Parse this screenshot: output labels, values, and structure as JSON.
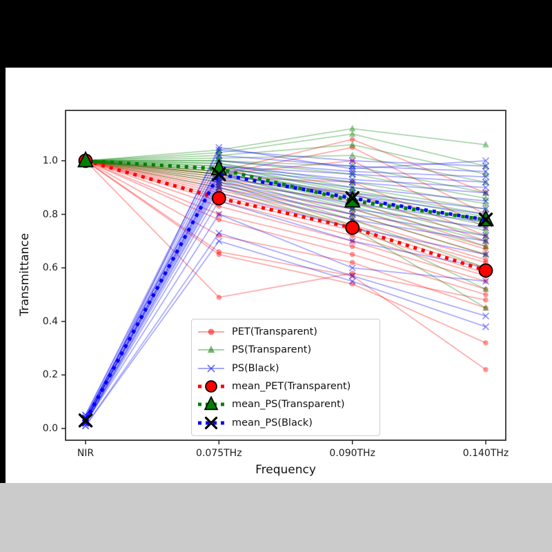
{
  "colors": {
    "pet_transparent": "#ff0000",
    "ps_transparent": "#008000",
    "ps_black": "#0000ff",
    "marker_edge": "#000000",
    "letterbox_top": "#000000",
    "letterbox_left": "#000000",
    "letterbox_bottom": "#cbcbcb",
    "plot_background": "#ffffff",
    "spine": "#262626"
  },
  "chart_data": {
    "type": "line",
    "title": "",
    "xlabel": "Frequency",
    "ylabel": "Transmittance",
    "x_categories": [
      "NIR",
      "0.075THz",
      "0.090THz",
      "0.140THz"
    ],
    "y_ticks": [
      "0.0",
      "0.2",
      "0.4",
      "0.6",
      "0.8",
      "1.0"
    ],
    "ylim": [
      -0.04,
      1.19
    ],
    "grid": false,
    "legend_position": "lower center inside axes",
    "groups": [
      {
        "name": "PET(Transparent)",
        "color": "#ff0000",
        "marker": "circle",
        "alpha": 0.3,
        "samples": [
          [
            1.0,
            0.49,
            0.58,
            0.48
          ],
          [
            1.0,
            0.65,
            0.54,
            0.32
          ],
          [
            1.0,
            0.66,
            0.57,
            0.22
          ],
          [
            1.0,
            0.72,
            0.62,
            0.45
          ],
          [
            1.0,
            0.78,
            0.65,
            0.5
          ],
          [
            1.0,
            0.8,
            0.68,
            0.52
          ],
          [
            1.0,
            0.83,
            0.7,
            0.55
          ],
          [
            1.0,
            0.85,
            0.72,
            0.57
          ],
          [
            1.0,
            0.86,
            0.74,
            0.58
          ],
          [
            1.0,
            0.87,
            0.75,
            0.6
          ],
          [
            1.0,
            0.88,
            0.76,
            0.62
          ],
          [
            1.0,
            0.89,
            0.78,
            0.63
          ],
          [
            1.0,
            0.9,
            0.8,
            0.65
          ],
          [
            1.0,
            0.91,
            0.82,
            0.67
          ],
          [
            1.0,
            0.92,
            0.85,
            0.68
          ],
          [
            1.0,
            0.93,
            0.88,
            0.7
          ],
          [
            1.0,
            0.94,
            0.92,
            0.72
          ],
          [
            1.0,
            0.95,
            1.0,
            0.75
          ],
          [
            1.0,
            0.95,
            1.05,
            0.8
          ],
          [
            1.0,
            0.96,
            1.08,
            0.88
          ]
        ]
      },
      {
        "name": "PS(Transparent)",
        "color": "#008000",
        "marker": "triangle",
        "alpha": 0.3,
        "samples": [
          [
            1.0,
            0.9,
            0.75,
            0.45
          ],
          [
            1.0,
            0.92,
            0.76,
            0.52
          ],
          [
            1.0,
            0.93,
            0.78,
            0.6
          ],
          [
            1.0,
            0.94,
            0.8,
            0.65
          ],
          [
            1.0,
            0.95,
            0.82,
            0.68
          ],
          [
            1.0,
            0.95,
            0.83,
            0.7
          ],
          [
            1.0,
            0.96,
            0.84,
            0.72
          ],
          [
            1.0,
            0.96,
            0.85,
            0.74
          ],
          [
            1.0,
            0.97,
            0.86,
            0.76
          ],
          [
            1.0,
            0.97,
            0.87,
            0.77
          ],
          [
            1.0,
            0.98,
            0.88,
            0.79
          ],
          [
            1.0,
            0.98,
            0.89,
            0.8
          ],
          [
            1.0,
            0.99,
            0.9,
            0.82
          ],
          [
            1.0,
            0.99,
            0.92,
            0.84
          ],
          [
            1.0,
            1.0,
            0.95,
            0.86
          ],
          [
            1.0,
            1.0,
            0.98,
            0.88
          ],
          [
            1.0,
            1.01,
            1.02,
            0.92
          ],
          [
            1.0,
            1.02,
            1.06,
            0.95
          ],
          [
            1.0,
            1.03,
            1.1,
            0.98
          ],
          [
            1.0,
            1.04,
            1.12,
            1.06
          ]
        ]
      },
      {
        "name": "PS(Black)",
        "color": "#0000ff",
        "marker": "x",
        "alpha": 0.3,
        "samples": [
          [
            0.01,
            0.7,
            0.55,
            0.38
          ],
          [
            0.01,
            0.73,
            0.57,
            0.42
          ],
          [
            0.02,
            0.8,
            0.6,
            0.55
          ],
          [
            0.02,
            0.85,
            0.7,
            0.6
          ],
          [
            0.02,
            0.88,
            0.75,
            0.65
          ],
          [
            0.02,
            0.9,
            0.78,
            0.7
          ],
          [
            0.02,
            0.91,
            0.8,
            0.72
          ],
          [
            0.03,
            0.92,
            0.82,
            0.75
          ],
          [
            0.03,
            0.93,
            0.84,
            0.77
          ],
          [
            0.03,
            0.94,
            0.86,
            0.78
          ],
          [
            0.03,
            0.95,
            0.87,
            0.8
          ],
          [
            0.03,
            0.95,
            0.88,
            0.82
          ],
          [
            0.03,
            0.96,
            0.9,
            0.85
          ],
          [
            0.04,
            0.97,
            0.92,
            0.88
          ],
          [
            0.04,
            0.98,
            0.93,
            0.9
          ],
          [
            0.04,
            0.98,
            0.95,
            0.92
          ],
          [
            0.04,
            1.0,
            0.96,
            0.94
          ],
          [
            0.05,
            1.02,
            0.98,
            0.96
          ],
          [
            0.05,
            1.04,
            1.0,
            0.98
          ],
          [
            0.02,
            1.05,
            0.97,
            1.0
          ]
        ]
      }
    ],
    "mean_series": [
      {
        "name": "mean_PET(Transparent)",
        "color": "#ff0000",
        "marker": "circle",
        "marker_fill": "#ff0000",
        "marker_edge": "#000000",
        "values": [
          1.0,
          0.86,
          0.75,
          0.59
        ]
      },
      {
        "name": "mean_PS(Transparent)",
        "color": "#008000",
        "marker": "triangle",
        "marker_fill": "#008000",
        "marker_edge": "#000000",
        "values": [
          1.0,
          0.97,
          0.85,
          0.78
        ]
      },
      {
        "name": "mean_PS(Black)",
        "color": "#0000ff",
        "marker": "X",
        "marker_fill": "none",
        "marker_edge": "#000000",
        "values": [
          0.03,
          0.95,
          0.86,
          0.78
        ]
      }
    ],
    "legend_entries": [
      "PET(Transparent)",
      "PS(Transparent)",
      "PS(Black)",
      "mean_PET(Transparent)",
      "mean_PS(Transparent)",
      "mean_PS(Black)"
    ]
  }
}
